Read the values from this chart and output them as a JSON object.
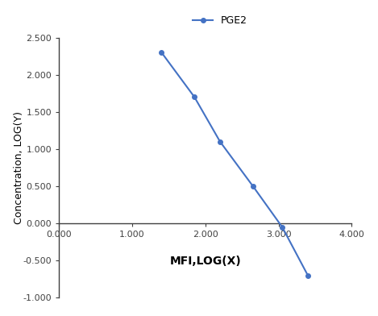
{
  "x": [
    1.4,
    1.85,
    2.2,
    2.65,
    3.05,
    3.4
  ],
  "y": [
    2.3,
    1.7,
    1.1,
    0.5,
    -0.05,
    -0.7
  ],
  "line_color": "#4472C4",
  "marker": "o",
  "marker_size": 4,
  "line_width": 1.5,
  "legend_label": "PGE2",
  "xlabel": "MFI,LOG(X)",
  "ylabel": "Concentration, LOG(Y)",
  "xlim": [
    0.0,
    4.0
  ],
  "ylim": [
    -1.0,
    2.5
  ],
  "xticks": [
    0.0,
    1.0,
    2.0,
    3.0,
    4.0
  ],
  "yticks": [
    -1.0,
    -0.5,
    0.0,
    0.5,
    1.0,
    1.5,
    2.0,
    2.5
  ],
  "xlabel_fontsize": 10,
  "ylabel_fontsize": 9,
  "legend_fontsize": 9,
  "tick_fontsize": 8,
  "background_color": "#ffffff",
  "spine_color": "#404040",
  "tick_color": "#404040"
}
